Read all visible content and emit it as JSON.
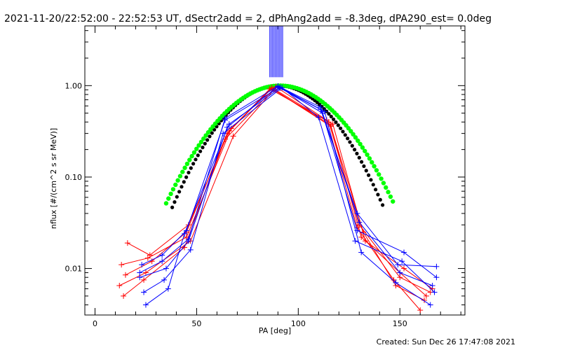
{
  "chart_data": {
    "type": "line",
    "title": "2021-11-20/22:52:00 - 22:52:53 UT, dSectr2add = 2, dPhAng2add = -8.3deg, dPA290_est=  0.0deg",
    "xlabel": "PA [deg]",
    "ylabel": "nflux [#/(cm^2 s sr MeV)]",
    "x_scale": "linear",
    "y_scale": "log",
    "xlim": [
      -5,
      182
    ],
    "ylim": [
      0.0031,
      4.5
    ],
    "x_ticks": [
      0,
      50,
      100,
      150
    ],
    "x_tick_labels": [
      "0",
      "50",
      "100",
      "150"
    ],
    "y_ticks": [
      0.01,
      0.1,
      1.0
    ],
    "y_tick_labels": [
      "0.01",
      "0.10",
      "1.00"
    ],
    "grid": false,
    "footer": "Created: Sun Dec 26 17:47:08 2021",
    "colors": {
      "red_series": "#ff0000",
      "blue_series": "#0000ff",
      "black_fit": "#000000",
      "green_fit": "#00ff00"
    },
    "series": [
      {
        "color": "red",
        "style": "line+plus",
        "x": [
          15,
          28,
          45,
          65,
          87,
          115,
          130,
          150,
          165
        ],
        "y": [
          0.0085,
          0.012,
          0.025,
          0.3,
          0.95,
          0.4,
          0.03,
          0.008,
          0.0055
        ]
      },
      {
        "color": "red",
        "style": "line+plus",
        "x": [
          12,
          25,
          47,
          68,
          88,
          116,
          132,
          148,
          162
        ],
        "y": [
          0.0065,
          0.009,
          0.02,
          0.28,
          0.9,
          0.36,
          0.025,
          0.0065,
          0.0045
        ]
      },
      {
        "color": "red",
        "style": "line+plus",
        "x": [
          16,
          27,
          46,
          66,
          86,
          117,
          133,
          152,
          166
        ],
        "y": [
          0.019,
          0.014,
          0.03,
          0.32,
          0.92,
          0.38,
          0.02,
          0.01,
          0.006
        ]
      },
      {
        "color": "red",
        "style": "line+plus",
        "x": [
          14,
          24,
          44,
          64,
          89,
          114,
          129,
          147,
          160
        ],
        "y": [
          0.005,
          0.0075,
          0.017,
          0.26,
          0.97,
          0.42,
          0.028,
          0.0075,
          0.0035
        ]
      },
      {
        "color": "red",
        "style": "line+plus",
        "x": [
          13,
          26,
          45,
          67,
          87,
          116,
          131,
          150,
          163
        ],
        "y": [
          0.011,
          0.013,
          0.022,
          0.34,
          0.93,
          0.37,
          0.022,
          0.009,
          0.005
        ]
      },
      {
        "color": "blue",
        "style": "line+plus",
        "x": [
          23,
          33,
          45,
          64,
          91,
          111,
          129,
          149,
          168
        ],
        "y": [
          0.011,
          0.014,
          0.026,
          0.42,
          0.96,
          0.55,
          0.04,
          0.011,
          0.0105
        ]
      },
      {
        "color": "blue",
        "style": "line+plus",
        "x": [
          22,
          35,
          46,
          65,
          90,
          112,
          130,
          150,
          166
        ],
        "y": [
          0.008,
          0.01,
          0.02,
          0.35,
          0.98,
          0.5,
          0.032,
          0.009,
          0.0065
        ]
      },
      {
        "color": "blue",
        "style": "line+plus",
        "x": [
          24,
          34,
          47,
          63,
          92,
          110,
          128,
          151,
          167
        ],
        "y": [
          0.0055,
          0.0075,
          0.016,
          0.3,
          0.95,
          0.45,
          0.02,
          0.012,
          0.0055
        ]
      },
      {
        "color": "blue",
        "style": "line+plus",
        "x": [
          25,
          36,
          44,
          66,
          91,
          113,
          131,
          148,
          165
        ],
        "y": [
          0.004,
          0.006,
          0.024,
          0.38,
          0.94,
          0.52,
          0.015,
          0.007,
          0.004
        ]
      },
      {
        "color": "blue",
        "style": "line+plus",
        "x": [
          22,
          33,
          46,
          64,
          90,
          111,
          129,
          152,
          168
        ],
        "y": [
          0.009,
          0.012,
          0.021,
          0.44,
          0.99,
          0.58,
          0.026,
          0.015,
          0.008
        ]
      }
    ],
    "spikes": {
      "color": "blue",
      "x_range": [
        86,
        93
      ],
      "y_from": 1.0,
      "y_to": 4.5
    },
    "fits": [
      {
        "name": "black",
        "style": "dots",
        "center": 90,
        "sigma": 21,
        "x_range": [
          38,
          142
        ]
      },
      {
        "name": "green",
        "style": "dots",
        "center": 91,
        "sigma": 23,
        "x_range": [
          35,
          147
        ]
      }
    ]
  }
}
